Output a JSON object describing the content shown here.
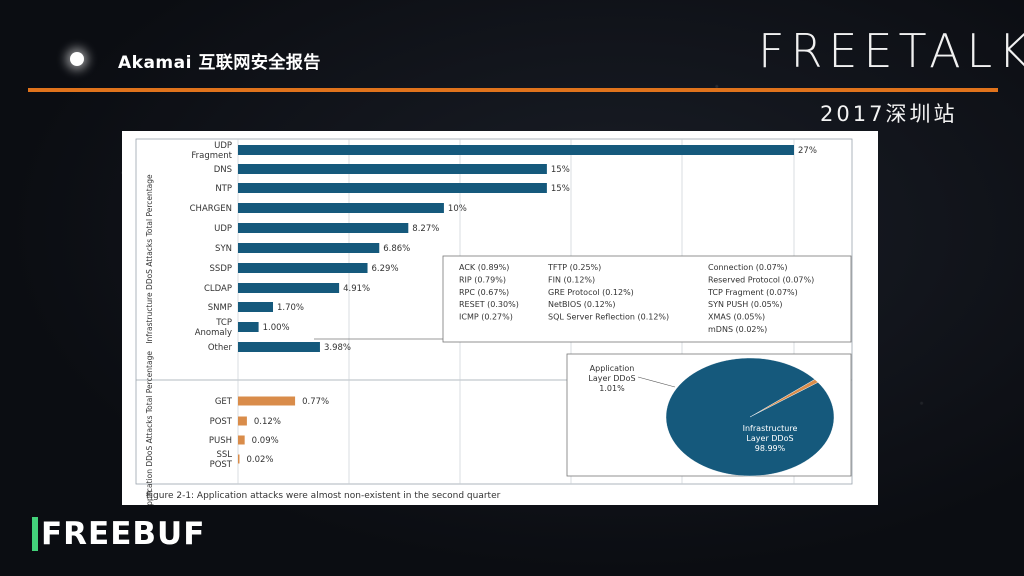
{
  "slide": {
    "title": "Akamai 互联网安全报告",
    "brand": "FREETALK",
    "subtitle": "2017深圳站",
    "logo": "FREEBUF"
  },
  "colors": {
    "infra_bar": "#15597c",
    "app_bar": "#d98c4a",
    "accent": "#e0731c"
  },
  "chart_data": {
    "type": "bar",
    "orientation": "horizontal",
    "title": "Figure 2-1: Application attacks were almost non-existent in the second quarter",
    "groups": [
      {
        "name": "Infrastructure DDoS Attacks Total Percentage",
        "categories": [
          "UDP Fragment",
          "DNS",
          "NTP",
          "CHARGEN",
          "UDP",
          "SYN",
          "SSDP",
          "CLDAP",
          "SNMP",
          "TCP Anomaly",
          "Other"
        ],
        "values": [
          27,
          15,
          15,
          10,
          8.27,
          6.86,
          6.29,
          4.91,
          1.7,
          1.0,
          3.98
        ],
        "labels": [
          "27%",
          "15%",
          "15%",
          "10%",
          "8.27%",
          "6.86%",
          "6.29%",
          "4.91%",
          "1.70%",
          "1.00%",
          "3.98%"
        ]
      },
      {
        "name": "Application DDoS Attacks Total Percentage",
        "categories": [
          "GET",
          "POST",
          "PUSH",
          "SSL POST"
        ],
        "values": [
          0.77,
          0.12,
          0.09,
          0.02
        ],
        "labels": [
          "0.77%",
          "0.12%",
          "0.09%",
          "0.02%"
        ]
      }
    ],
    "xlim": [
      0,
      30
    ],
    "grid": true,
    "other_breakdown": [
      [
        "ACK (0.89%)",
        "RIP (0.79%)",
        "RPC (0.67%)",
        "RESET (0.30%)",
        "ICMP (0.27%)"
      ],
      [
        "TFTP (0.25%)",
        "FIN (0.12%)",
        "GRE Protocol (0.12%)",
        "NetBIOS (0.12%)",
        "SQL Server Reflection (0.12%)"
      ],
      [
        "Connection (0.07%)",
        "Reserved Protocol (0.07%)",
        "TCP Fragment (0.07%)",
        "SYN PUSH (0.05%)",
        "XMAS (0.05%)",
        "mDNS (0.02%)"
      ]
    ],
    "pie": {
      "slices": [
        {
          "name": "Application Layer DDoS",
          "value": 1.01,
          "label": "1.01%"
        },
        {
          "name": "Infrastructure Layer DDoS",
          "value": 98.99,
          "label": "98.99%"
        }
      ]
    }
  }
}
